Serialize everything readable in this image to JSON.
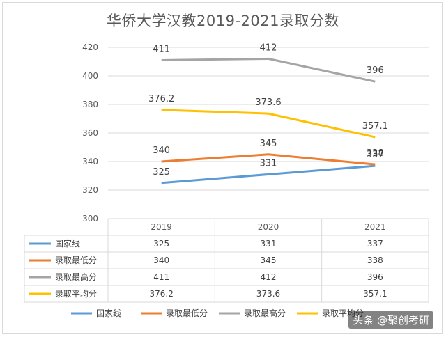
{
  "chart_data": {
    "type": "line",
    "title": "华侨大学汉教2019-2021录取分数",
    "categories": [
      "2019",
      "2020",
      "2021"
    ],
    "ylim": [
      300,
      420
    ],
    "yticks": [
      300,
      320,
      340,
      360,
      380,
      400,
      420
    ],
    "grid": true,
    "legend": "bottom",
    "series": [
      {
        "name": "国家线",
        "values": [
          325,
          331,
          337
        ],
        "labels": [
          "325",
          "331",
          "337"
        ],
        "color": "#5b9bd5"
      },
      {
        "name": "录取最低分",
        "values": [
          340,
          345,
          338
        ],
        "labels": [
          "340",
          "345",
          "338"
        ],
        "color": "#ed7d31"
      },
      {
        "name": "录取最高分",
        "values": [
          411,
          412,
          396
        ],
        "labels": [
          "411",
          "412",
          "396"
        ],
        "color": "#a5a5a5"
      },
      {
        "name": "录取平均分",
        "values": [
          376.2,
          373.6,
          357.1
        ],
        "labels": [
          "376.2",
          "373.6",
          "357.1"
        ],
        "color": "#ffc000"
      }
    ]
  },
  "watermark": "头条 @聚创考研"
}
